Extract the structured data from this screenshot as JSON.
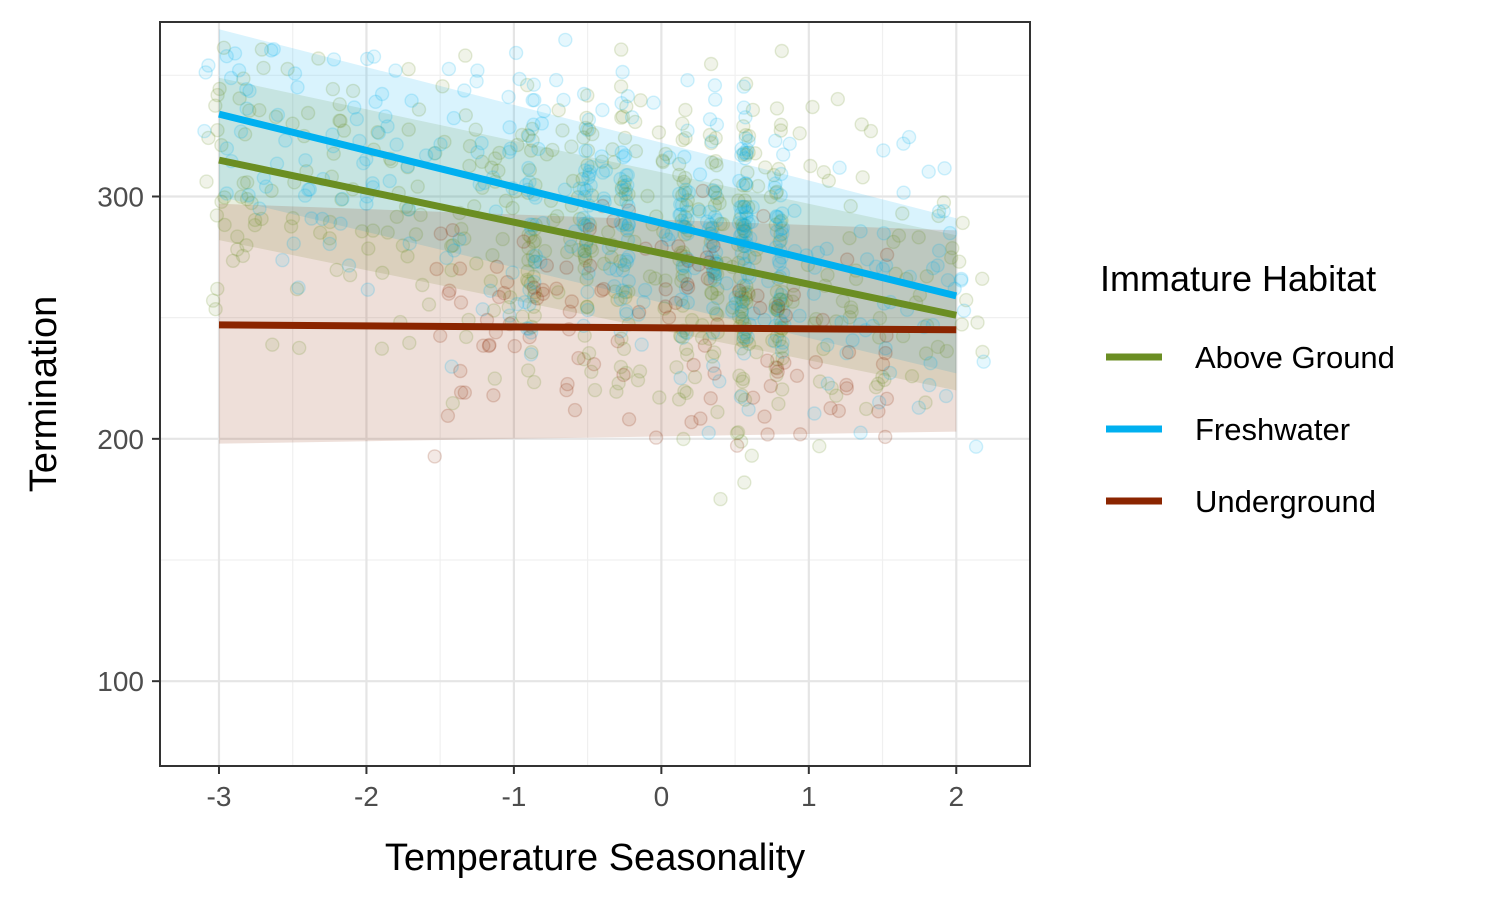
{
  "chart_data": {
    "type": "scatter",
    "title": "",
    "xlabel": "Temperature Seasonality",
    "ylabel": "Termination",
    "xlim": [
      -3.4,
      2.5
    ],
    "ylim": [
      65,
      372
    ],
    "x_ticks": [
      -3,
      -2,
      -1,
      0,
      1,
      2
    ],
    "x_tick_labels": [
      "-3",
      "-2",
      "-1",
      "0",
      "1",
      "2"
    ],
    "y_ticks": [
      100,
      200,
      300
    ],
    "y_tick_labels": [
      "100",
      "200",
      "300"
    ],
    "grid": true,
    "legend": {
      "title": "Immature Habitat",
      "placement": "right"
    },
    "series": [
      {
        "name": "Above Ground",
        "color": "#6b8e23",
        "fit": {
          "x": [
            -3,
            2
          ],
          "y": [
            315,
            251
          ]
        },
        "ribbon": {
          "x": [
            -3,
            2
          ],
          "lower": [
            282,
            220
          ],
          "upper": [
            349,
            284
          ]
        }
      },
      {
        "name": "Freshwater",
        "color": "#00b0f0",
        "fit": {
          "x": [
            -3,
            2
          ],
          "y": [
            334,
            259
          ]
        },
        "ribbon": {
          "x": [
            -3,
            2
          ],
          "lower": [
            300,
            227
          ],
          "upper": [
            369,
            291
          ]
        }
      },
      {
        "name": "Underground",
        "color": "#8b2500",
        "fit": {
          "x": [
            -3,
            2
          ],
          "y": [
            247,
            245
          ]
        },
        "ribbon": {
          "x": [
            -3,
            2
          ],
          "lower": [
            198,
            203
          ],
          "upper": [
            297,
            286
          ]
        }
      }
    ]
  }
}
